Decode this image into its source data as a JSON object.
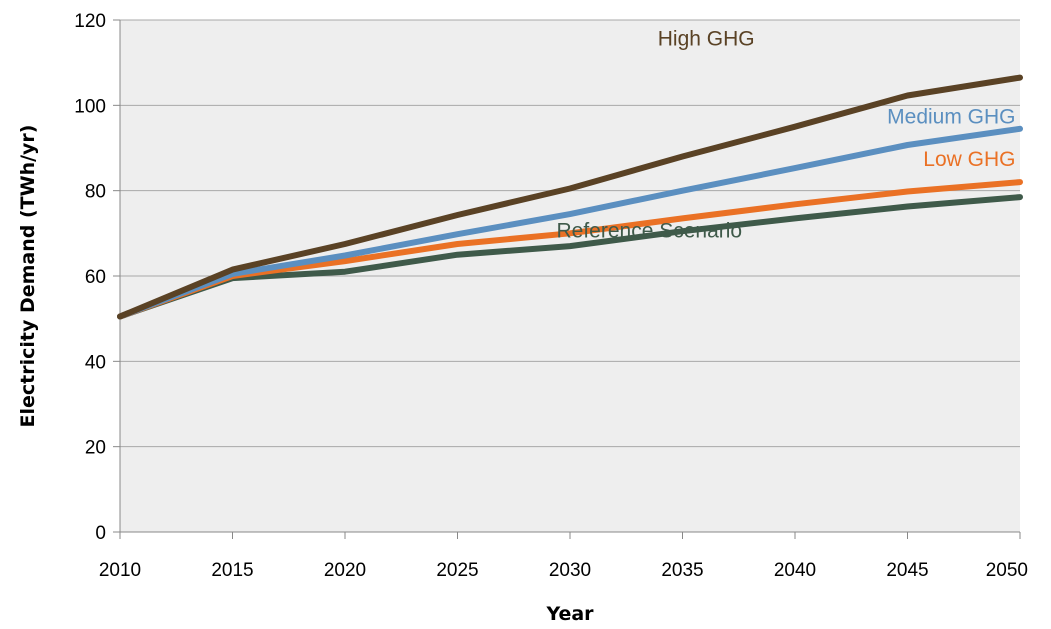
{
  "chart_data": {
    "type": "line",
    "x": [
      2010,
      2015,
      2020,
      2025,
      2030,
      2035,
      2040,
      2045,
      2050
    ],
    "xlim": [
      2010,
      2050
    ],
    "ylim": [
      0,
      120
    ],
    "xticks": [
      "2010",
      "2015",
      "2020",
      "2025",
      "2030",
      "2035",
      "2040",
      "2045",
      "2050"
    ],
    "yticks": [
      "0",
      "20",
      "40",
      "60",
      "80",
      "100",
      "120"
    ],
    "xlabel": "Year",
    "ylabel": "Electricity Demand (TWh/yr)",
    "grid": "horizontal",
    "plot_background": "#eeeeee",
    "series": [
      {
        "name": "Reference Scenario",
        "color": "#3f5a4a",
        "values": [
          50.5,
          59.5,
          61.0,
          65.0,
          67.0,
          70.5,
          73.5,
          76.3,
          78.5
        ]
      },
      {
        "name": "Low GHG",
        "color": "#ea7125",
        "values": [
          50.5,
          60.0,
          63.5,
          67.5,
          70.0,
          73.5,
          76.8,
          79.8,
          82.0
        ]
      },
      {
        "name": "Medium GHG",
        "color": "#5b8fc0",
        "values": [
          50.5,
          60.5,
          64.8,
          69.8,
          74.5,
          80.0,
          85.3,
          90.7,
          94.5
        ]
      },
      {
        "name": "High GHG",
        "color": "#5a4225",
        "values": [
          50.5,
          61.5,
          67.5,
          74.3,
          80.5,
          88.0,
          95.0,
          102.3,
          106.5
        ]
      }
    ]
  }
}
